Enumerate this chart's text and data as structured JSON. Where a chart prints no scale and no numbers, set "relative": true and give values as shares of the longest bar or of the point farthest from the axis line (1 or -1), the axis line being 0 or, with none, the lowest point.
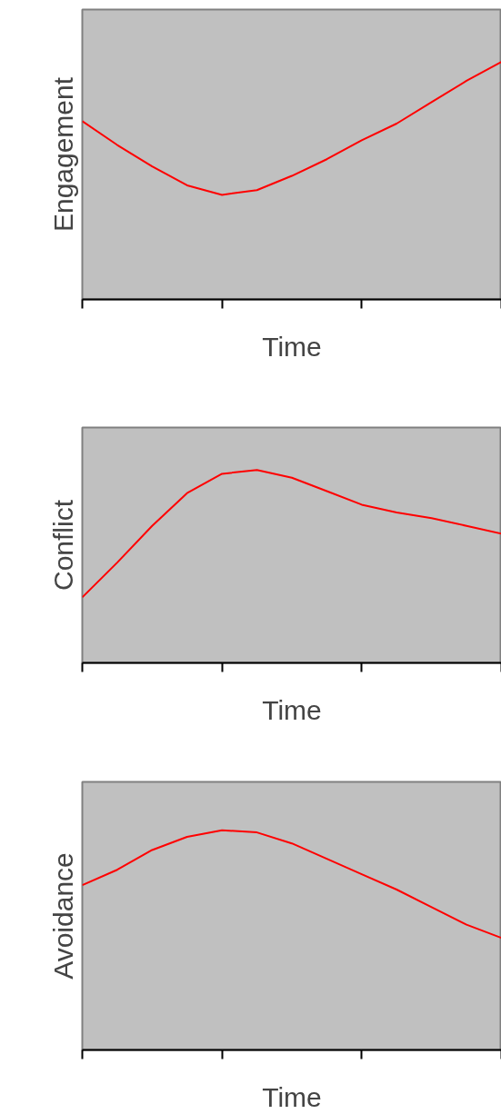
{
  "chart_data": [
    {
      "type": "line",
      "relative": true,
      "xlabel": "Time",
      "ylabel": "Engagement",
      "categories": [
        null,
        null,
        null,
        null,
        null,
        null,
        null,
        null,
        null,
        null,
        null,
        null,
        null
      ],
      "series": [
        {
          "color": "#ff0000",
          "values": [
            0.75,
            0.65,
            0.56,
            0.48,
            0.44,
            0.46,
            0.52,
            0.59,
            0.67,
            0.74,
            0.83,
            0.92,
            1.0
          ]
        }
      ]
    },
    {
      "type": "line",
      "relative": true,
      "xlabel": "Time",
      "ylabel": "Conflict",
      "categories": [
        null,
        null,
        null,
        null,
        null,
        null,
        null,
        null,
        null,
        null,
        null,
        null,
        null
      ],
      "series": [
        {
          "color": "#ff0000",
          "values": [
            0.34,
            0.52,
            0.71,
            0.88,
            0.98,
            1.0,
            0.96,
            0.89,
            0.82,
            0.78,
            0.75,
            0.71,
            0.67
          ]
        }
      ]
    },
    {
      "type": "line",
      "relative": true,
      "xlabel": "Time",
      "ylabel": "Avoidance",
      "categories": [
        null,
        null,
        null,
        null,
        null,
        null,
        null,
        null,
        null,
        null,
        null,
        null,
        null
      ],
      "series": [
        {
          "color": "#ff0000",
          "values": [
            0.75,
            0.82,
            0.91,
            0.97,
            1.0,
            0.99,
            0.94,
            0.87,
            0.8,
            0.73,
            0.65,
            0.57,
            0.51
          ]
        }
      ]
    }
  ]
}
